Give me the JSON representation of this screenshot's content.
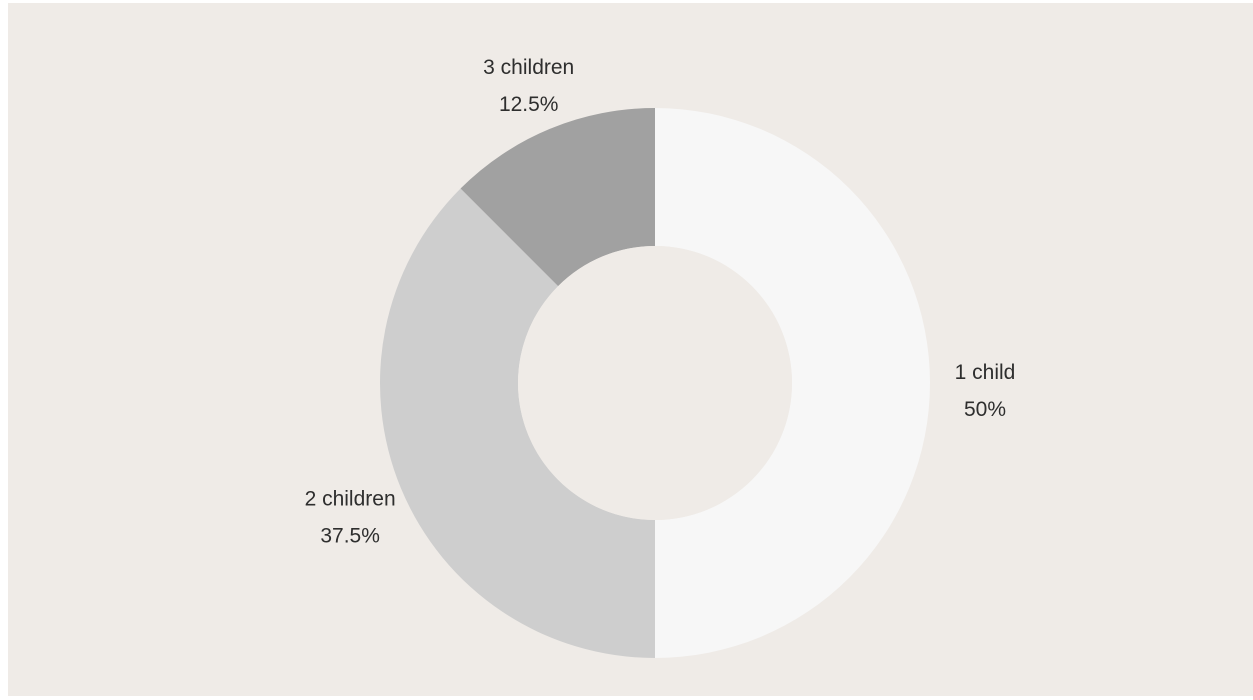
{
  "chart_data": {
    "type": "pie",
    "donut": true,
    "categories": [
      "1 child",
      "2 children",
      "3 children"
    ],
    "values": [
      50,
      37.5,
      12.5
    ],
    "unit": "%",
    "value_labels": [
      "50%",
      "37.5%",
      "12.5%"
    ],
    "colors": [
      "#f7f7f7",
      "#cecece",
      "#a1a1a1"
    ],
    "background_color": "#efebe7",
    "start_angle": "12 o'clock",
    "direction": "clockwise",
    "legend": "none"
  }
}
